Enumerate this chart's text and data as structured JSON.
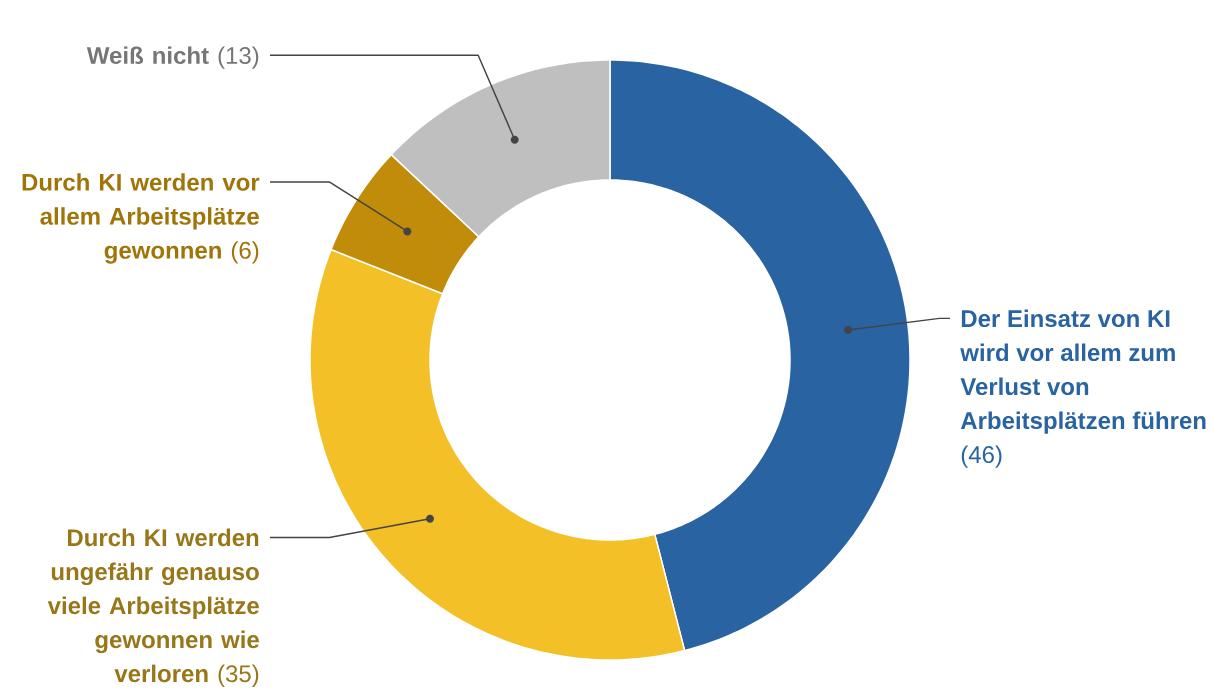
{
  "chart_data": {
    "type": "donut",
    "categories": [
      "**Der Einsatz von KI wird vor allem zum Verlust von Arbeitsplätzen führen** (46)",
      "**Durch KI werden ungefähr genauso viele Arbeitsplätze gewonnen wie verloren** (35)",
      "**Durch KI werden vor allem Arbeitsplätze gewonnen** (6)",
      "**Weiß nicht** (13)"
    ],
    "values": [
      46,
      35,
      6,
      13
    ],
    "colors": [
      "#2a63a1",
      "#f4c027",
      "#c08c0a",
      "#bfbfbf"
    ]
  }
}
